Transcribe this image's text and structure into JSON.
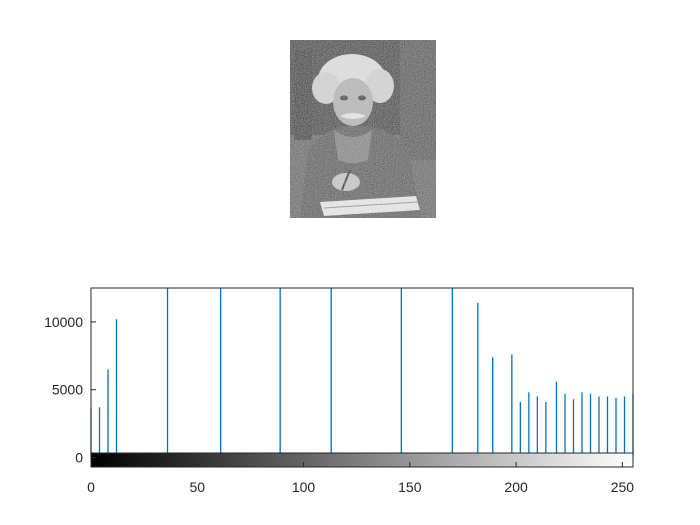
{
  "figure": {
    "image": {
      "description": "Grayscale photograph of an elderly man with wild white hair, holding a pen above a notebook"
    }
  },
  "chart_data": {
    "type": "bar",
    "style": "stem",
    "bar_color": "#0072BD",
    "xlim": [
      0,
      255
    ],
    "ylim": [
      -700,
      12500
    ],
    "x_ticks": [
      0,
      50,
      100,
      150,
      200,
      250
    ],
    "y_ticks": [
      0,
      5000,
      10000
    ],
    "colorbar": "gray",
    "xlabel": "",
    "ylabel": "",
    "title": "",
    "x": [
      0,
      4,
      8,
      12,
      36,
      61,
      89,
      113,
      146,
      170,
      182,
      189,
      198,
      202,
      206,
      210,
      214,
      219,
      223,
      227,
      231,
      235,
      239,
      243,
      247,
      251,
      255
    ],
    "values": [
      3700,
      3700,
      6500,
      10200,
      12500,
      12500,
      12500,
      12500,
      12500,
      12500,
      11400,
      7400,
      7600,
      4100,
      4800,
      4500,
      4100,
      5600,
      4700,
      4300,
      4800,
      4700,
      4500,
      4500,
      4400,
      4500,
      4700
    ],
    "clipped_at_top": true
  }
}
